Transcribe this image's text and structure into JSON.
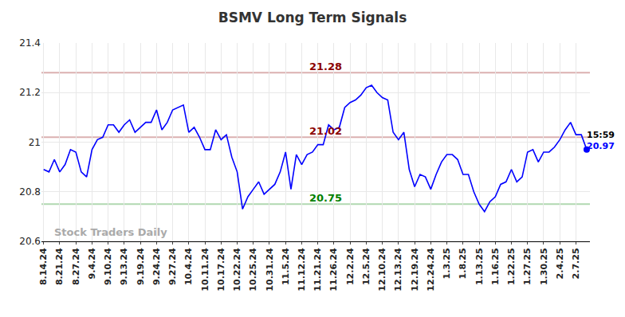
{
  "chart_data": {
    "type": "line",
    "title": "BSMV Long Term Signals",
    "color": "#0000ff",
    "categories": [
      "8.14.24",
      null,
      null,
      "8.21.24",
      null,
      null,
      "8.27.24",
      null,
      null,
      "9.4.24",
      null,
      null,
      "9.10.24",
      null,
      null,
      "9.13.24",
      null,
      null,
      "9.19.24",
      null,
      null,
      "9.24.24",
      null,
      null,
      "9.27.24",
      null,
      null,
      "10.4.24",
      null,
      null,
      "10.11.24",
      null,
      null,
      "10.17.24",
      null,
      null,
      "10.22.24",
      null,
      null,
      "10.25.24",
      null,
      null,
      "10.31.24",
      null,
      null,
      "11.5.24",
      null,
      null,
      "11.12.24",
      null,
      null,
      "11.21.24",
      null,
      null,
      "11.26.24",
      null,
      null,
      "12.2.24",
      null,
      null,
      "12.5.24",
      null,
      null,
      "12.10.24",
      null,
      null,
      "12.13.24",
      null,
      null,
      "12.19.24",
      null,
      null,
      "12.24.24",
      null,
      null,
      "1.3.25",
      null,
      null,
      "1.8.25",
      null,
      null,
      "1.13.25",
      null,
      null,
      "1.16.25",
      null,
      null,
      "1.22.25",
      null,
      null,
      "1.27.25",
      null,
      null,
      "1.30.25",
      null,
      null,
      "2.4.25",
      null,
      null,
      "2.7.25",
      null,
      null
    ],
    "values": [
      20.89,
      20.88,
      20.93,
      20.88,
      20.91,
      20.97,
      20.96,
      20.88,
      20.86,
      20.97,
      21.01,
      21.02,
      21.07,
      21.07,
      21.04,
      21.07,
      21.09,
      21.04,
      21.06,
      21.08,
      21.08,
      21.13,
      21.05,
      21.08,
      21.13,
      21.14,
      21.15,
      21.04,
      21.06,
      21.02,
      20.97,
      20.97,
      21.05,
      21.01,
      21.03,
      20.94,
      20.88,
      20.73,
      20.78,
      20.81,
      20.84,
      20.79,
      20.81,
      20.83,
      20.88,
      20.96,
      20.81,
      20.95,
      20.91,
      20.95,
      20.96,
      20.99,
      20.99,
      21.07,
      21.05,
      21.06,
      21.14,
      21.16,
      21.17,
      21.19,
      21.22,
      21.23,
      21.2,
      21.18,
      21.17,
      21.04,
      21.01,
      21.04,
      20.89,
      20.82,
      20.87,
      20.86,
      20.81,
      20.87,
      20.92,
      20.95,
      20.95,
      20.93,
      20.87,
      20.87,
      20.8,
      20.75,
      20.72,
      20.76,
      20.78,
      20.83,
      20.84,
      20.89,
      20.84,
      20.86,
      20.96,
      20.97,
      20.92,
      20.96,
      20.96,
      20.98,
      21.01,
      21.05,
      21.08,
      21.03,
      21.03,
      20.97
    ],
    "ylim": [
      20.6,
      21.4
    ],
    "yticks": [
      20.6,
      20.8,
      21,
      21.2,
      21.4
    ],
    "grid": true,
    "levels": [
      {
        "value": 21.28,
        "label": "21.28",
        "color": "#8b0000"
      },
      {
        "value": 21.02,
        "label": "21.02",
        "color": "#8b0000"
      },
      {
        "value": 20.75,
        "label": "20.75",
        "color": "#008000"
      }
    ],
    "last_time": "15:59",
    "watermark": "Stock Traders Daily"
  }
}
